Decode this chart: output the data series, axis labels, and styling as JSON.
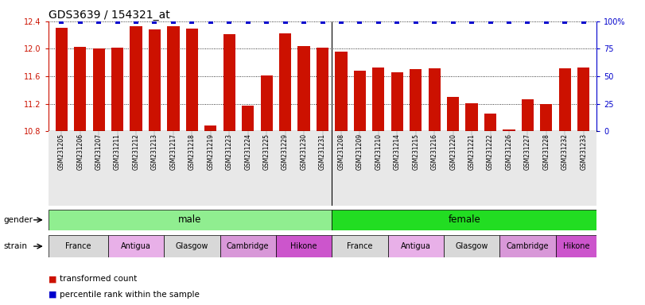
{
  "title": "GDS3639 / 154321_at",
  "samples": [
    "GSM231205",
    "GSM231206",
    "GSM231207",
    "GSM231211",
    "GSM231212",
    "GSM231213",
    "GSM231217",
    "GSM231218",
    "GSM231219",
    "GSM231223",
    "GSM231224",
    "GSM231225",
    "GSM231229",
    "GSM231230",
    "GSM231231",
    "GSM231208",
    "GSM231209",
    "GSM231210",
    "GSM231214",
    "GSM231215",
    "GSM231216",
    "GSM231220",
    "GSM231221",
    "GSM231222",
    "GSM231226",
    "GSM231227",
    "GSM231228",
    "GSM231232",
    "GSM231233"
  ],
  "values": [
    12.31,
    12.03,
    12.01,
    12.02,
    12.33,
    12.28,
    12.33,
    12.29,
    10.88,
    12.21,
    11.17,
    11.61,
    12.22,
    12.04,
    12.02,
    11.96,
    11.68,
    11.73,
    11.66,
    11.7,
    11.72,
    11.3,
    11.21,
    11.06,
    10.83,
    11.27,
    11.2,
    11.71,
    11.73
  ],
  "percentiles": [
    100,
    100,
    100,
    100,
    100,
    100,
    100,
    100,
    100,
    100,
    100,
    100,
    100,
    100,
    100,
    100,
    100,
    100,
    100,
    100,
    100,
    100,
    100,
    100,
    100,
    100,
    100,
    100,
    100
  ],
  "ylim_left": [
    10.8,
    12.4
  ],
  "ylim_right": [
    0,
    100
  ],
  "yticks_left": [
    10.8,
    11.2,
    11.6,
    12.0,
    12.4
  ],
  "yticks_right": [
    0,
    25,
    50,
    75,
    100
  ],
  "bar_color": "#cc1100",
  "dot_color": "#0000cc",
  "gender_color_male": "#90ee90",
  "gender_color_female": "#22dd22",
  "strain_colors_list": [
    "#d8d8d8",
    "#e8b0e8",
    "#d8d8d8",
    "#d898d8",
    "#cc55cc",
    "#d8d8d8",
    "#e8b0e8",
    "#d8d8d8",
    "#d898d8",
    "#cc55cc"
  ],
  "strain_labels": [
    "France",
    "Antigua",
    "Glasgow",
    "Cambridge",
    "Hikone",
    "France",
    "Antigua",
    "Glasgow",
    "Cambridge",
    "Hikone"
  ],
  "title_fontsize": 10,
  "tick_fontsize": 7,
  "label_fontsize": 7.5,
  "xtick_fontsize": 5.5
}
